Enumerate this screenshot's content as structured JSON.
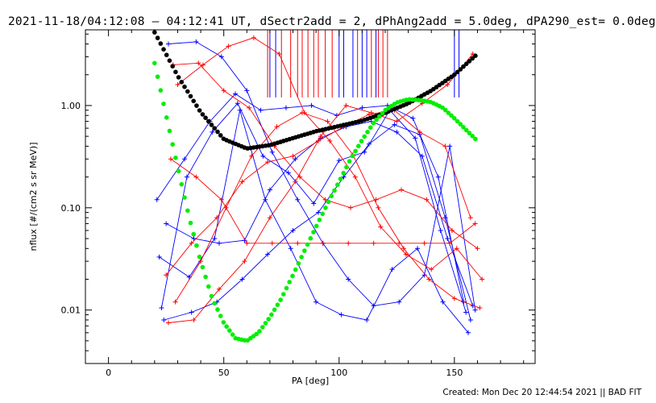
{
  "chart_data": {
    "type": "line",
    "title": "2021-11-18/04:12:08 – 04:12:41 UT, dSectr2add = 2, dPhAng2add = 5.0deg, dPA290_est=  0.0deg",
    "xlabel": "PA [deg]",
    "ylabel": "nflux [#/(cm2 s sr MeV)]",
    "xlim": [
      -10,
      185
    ],
    "ylim": [
      0.003,
      5.5
    ],
    "yscale": "log",
    "xticks": [
      0,
      50,
      100,
      150
    ],
    "xtick_labels": [
      "0",
      "50",
      "100",
      "150"
    ],
    "yticks": [
      0.01,
      0.1,
      1.0
    ],
    "ytick_labels": [
      "0.01",
      "0.10",
      "1.00"
    ],
    "series": [
      {
        "name": "blue-sweep-1",
        "color": "#0000ff",
        "marker": "plus",
        "x": [
          21,
          33,
          44,
          55,
          66,
          77,
          88,
          99,
          110,
          121,
          132,
          143,
          154
        ],
        "y": [
          0.12,
          0.3,
          0.7,
          1.3,
          0.9,
          0.95,
          1.0,
          0.8,
          0.95,
          1.0,
          0.75,
          0.2,
          0.012
        ]
      },
      {
        "name": "blue-sweep-2",
        "color": "#0000ff",
        "marker": "plus",
        "x": [
          22,
          35,
          46,
          57,
          68,
          79,
          90,
          101,
          112,
          123,
          134,
          145,
          156
        ],
        "y": [
          0.033,
          0.021,
          0.05,
          0.9,
          0.12,
          0.04,
          0.012,
          0.009,
          0.008,
          0.025,
          0.04,
          0.012,
          0.006
        ]
      },
      {
        "name": "blue-sweep-3",
        "color": "#0000ff",
        "marker": "plus",
        "x": [
          23,
          34,
          45,
          56,
          67,
          78,
          89,
          100,
          111,
          122,
          133,
          144,
          155
        ],
        "y": [
          0.0105,
          0.2,
          0.55,
          1.05,
          0.32,
          0.22,
          0.11,
          0.29,
          0.35,
          0.9,
          0.48,
          0.06,
          0.0095
        ]
      },
      {
        "name": "blue-sweep-4",
        "color": "#0000ff",
        "marker": "plus",
        "x": [
          24,
          36,
          47,
          58,
          69,
          80,
          91,
          102,
          113,
          124,
          135,
          146,
          157
        ],
        "y": [
          0.008,
          0.0095,
          0.012,
          0.02,
          0.035,
          0.06,
          0.09,
          0.2,
          0.42,
          0.65,
          0.52,
          0.08,
          0.008
        ]
      },
      {
        "name": "blue-sweep-5",
        "color": "#0000ff",
        "marker": "plus",
        "x": [
          25,
          37,
          48,
          59,
          70,
          81,
          92,
          103,
          114,
          125,
          136,
          147,
          158
        ],
        "y": [
          0.07,
          0.05,
          0.045,
          0.048,
          0.15,
          0.3,
          0.48,
          0.62,
          0.7,
          0.55,
          0.32,
          0.05,
          0.011
        ]
      },
      {
        "name": "blue-sweep-6",
        "color": "#0000ff",
        "marker": "plus",
        "x": [
          26,
          38,
          49,
          60,
          71,
          82,
          93,
          104,
          115,
          126,
          137,
          148,
          159
        ],
        "y": [
          4.0,
          4.2,
          3.0,
          1.4,
          0.35,
          0.12,
          0.045,
          0.02,
          0.011,
          0.012,
          0.022,
          0.4,
          0.01
        ]
      },
      {
        "name": "red-sweep-1",
        "color": "#ff0000",
        "marker": "plus",
        "x": [
          25,
          36,
          47,
          58,
          69,
          80,
          91,
          102,
          113,
          124,
          135,
          146,
          157
        ],
        "y": [
          0.022,
          0.045,
          0.08,
          0.18,
          0.28,
          0.32,
          0.45,
          0.62,
          0.82,
          0.9,
          0.55,
          0.4,
          0.08
        ]
      },
      {
        "name": "red-sweep-2",
        "color": "#ff0000",
        "marker": "plus",
        "x": [
          26,
          37,
          48,
          59,
          70,
          81,
          92,
          103,
          114,
          125,
          136,
          147,
          158
        ],
        "y": [
          0.0075,
          0.008,
          0.016,
          0.03,
          0.08,
          0.18,
          0.5,
          1.0,
          0.85,
          0.7,
          1.05,
          1.6,
          3.2
        ]
      },
      {
        "name": "red-sweep-3",
        "color": "#ff0000",
        "marker": "plus",
        "x": [
          27,
          38,
          49,
          60,
          71,
          82,
          93,
          104,
          115,
          126,
          137,
          148,
          159
        ],
        "y": [
          0.3,
          0.2,
          0.12,
          0.045,
          0.045,
          0.045,
          0.045,
          0.045,
          0.045,
          0.045,
          0.045,
          0.045,
          0.07
        ]
      },
      {
        "name": "red-sweep-4",
        "color": "#ff0000",
        "marker": "plus",
        "x": [
          28,
          39,
          50,
          61,
          72,
          83,
          94,
          105,
          116,
          127,
          138,
          149,
          160
        ],
        "y": [
          2.5,
          2.6,
          1.4,
          0.95,
          0.4,
          0.2,
          0.12,
          0.1,
          0.12,
          0.15,
          0.12,
          0.06,
          0.04
        ]
      },
      {
        "name": "red-sweep-5",
        "color": "#ff0000",
        "marker": "plus",
        "x": [
          29,
          40,
          51,
          62,
          73,
          84,
          95,
          106,
          117,
          128,
          139,
          150,
          161
        ],
        "y": [
          0.012,
          0.03,
          0.1,
          0.32,
          0.62,
          0.85,
          0.7,
          0.33,
          0.1,
          0.04,
          0.02,
          0.013,
          0.0105
        ]
      },
      {
        "name": "red-sweep-6",
        "color": "#ff0000",
        "marker": "plus",
        "x": [
          30,
          41,
          52,
          63,
          74,
          85,
          96,
          107,
          118,
          129,
          140,
          151,
          162
        ],
        "y": [
          1.6,
          2.5,
          3.8,
          4.6,
          3.2,
          0.85,
          0.45,
          0.2,
          0.065,
          0.035,
          0.025,
          0.04,
          0.02
        ]
      }
    ],
    "fits": [
      {
        "name": "black-fit",
        "color": "#000000",
        "x": [
          20,
          30,
          40,
          50,
          60,
          70,
          80,
          90,
          100,
          110,
          120,
          130,
          140,
          150,
          160
        ],
        "y": [
          5.2,
          1.95,
          0.86,
          0.47,
          0.38,
          0.41,
          0.48,
          0.56,
          0.63,
          0.71,
          0.85,
          1.05,
          1.4,
          2.0,
          3.2
        ]
      },
      {
        "name": "green-fit",
        "color": "#00ee00",
        "x": [
          20,
          25,
          30,
          35,
          40,
          45,
          50,
          55,
          60,
          65,
          70,
          75,
          80,
          85,
          90,
          95,
          100,
          105,
          110,
          115,
          120,
          125,
          130,
          135,
          140,
          145,
          150,
          155,
          160
        ],
        "y": [
          2.6,
          0.8,
          0.25,
          0.08,
          0.03,
          0.013,
          0.0075,
          0.0053,
          0.005,
          0.006,
          0.0085,
          0.013,
          0.022,
          0.038,
          0.065,
          0.11,
          0.18,
          0.3,
          0.46,
          0.68,
          0.9,
          1.07,
          1.15,
          1.13,
          1.08,
          0.95,
          0.75,
          0.58,
          0.45
        ]
      }
    ],
    "vlines": {
      "blue_x": [
        70,
        72.5,
        100,
        102,
        106,
        110,
        112,
        116,
        150,
        152
      ],
      "red_x": [
        69,
        75,
        79,
        82,
        84,
        86.5,
        89,
        91,
        94,
        97,
        108,
        114,
        117,
        119,
        121
      ],
      "bottom_y": 1.2
    },
    "grid": false,
    "legend": "none"
  },
  "footer": "Created: Mon Dec 20 12:44:54 2021 || BAD FIT"
}
